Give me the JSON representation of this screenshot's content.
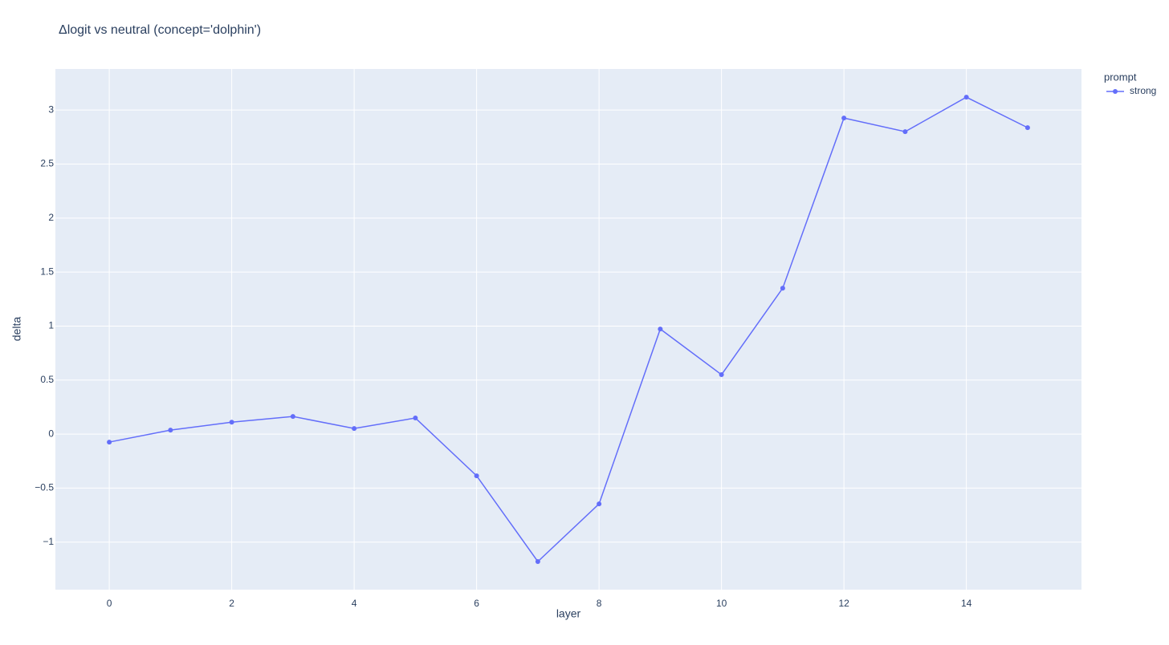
{
  "chart_data": {
    "type": "line",
    "title": "Δlogit vs neutral (concept='dolphin')",
    "x_label": "layer",
    "y_label": "delta",
    "legend_title": "prompt",
    "x": [
      0,
      1,
      2,
      3,
      4,
      5,
      6,
      7,
      8,
      9,
      10,
      11,
      12,
      13,
      14,
      15
    ],
    "series": [
      {
        "name": "strong",
        "color": "#636efa",
        "values": [
          -0.074,
          0.037,
          0.11,
          0.163,
          0.052,
          0.149,
          -0.386,
          -1.18,
          -0.646,
          0.973,
          0.55,
          1.351,
          2.926,
          2.8,
          3.119,
          2.837
        ]
      }
    ],
    "xlim": [
      -0.88,
      15.88
    ],
    "xticks": [
      0,
      2,
      4,
      6,
      8,
      10,
      12,
      14
    ],
    "ylim": [
      -1.44,
      3.38
    ],
    "yticks": [
      {
        "value": -1,
        "label": "−1"
      },
      {
        "value": -0.5,
        "label": "−0.5"
      },
      0,
      0.5,
      1,
      1.5,
      2,
      2.5,
      3
    ],
    "grid": true,
    "legend_position": "right"
  }
}
